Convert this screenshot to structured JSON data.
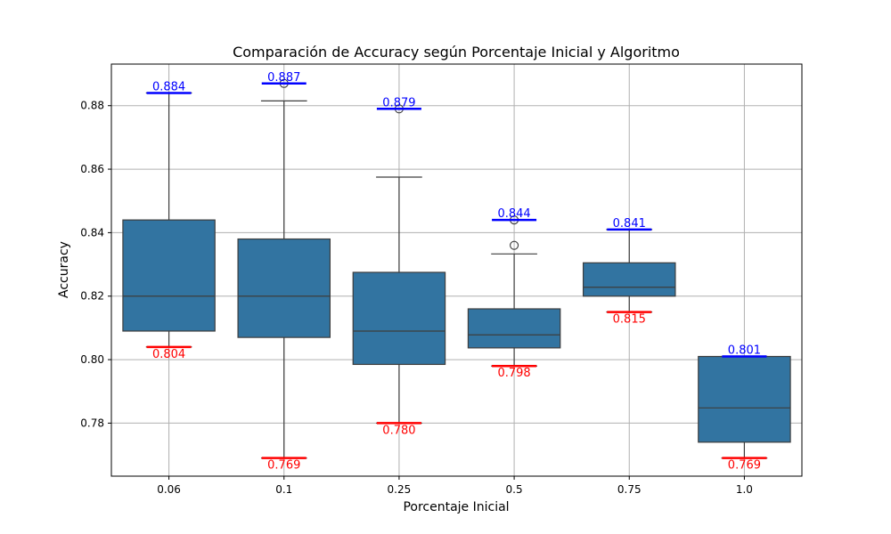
{
  "chart_data": {
    "type": "box",
    "title": "Comparación de Accuracy según Porcentaje Inicial y Algoritmo",
    "xlabel": "Porcentaje Inicial",
    "ylabel": "Accuracy",
    "ylim": [
      0.7633,
      0.8931
    ],
    "yticks": [
      0.78,
      0.8,
      0.82,
      0.84,
      0.86,
      0.88
    ],
    "ytick_labels": [
      "0.78",
      "0.80",
      "0.82",
      "0.84",
      "0.86",
      "0.88"
    ],
    "grid": true,
    "categories": [
      "0.06",
      "0.1",
      "0.25",
      "0.5",
      "0.75",
      "1.0"
    ],
    "boxes": [
      {
        "q1": 0.809,
        "median": 0.82,
        "q3": 0.844,
        "whisker_low": 0.804,
        "whisker_high": 0.884,
        "outliers": [],
        "max": 0.884,
        "min": 0.804,
        "max_label": "0.884",
        "min_label": "0.804"
      },
      {
        "q1": 0.807,
        "median": 0.82,
        "q3": 0.838,
        "whisker_low": 0.769,
        "whisker_high": 0.8815,
        "outliers": [
          0.887
        ],
        "max": 0.887,
        "min": 0.769,
        "max_label": "0.887",
        "min_label": "0.769"
      },
      {
        "q1": 0.7985,
        "median": 0.809,
        "q3": 0.8275,
        "whisker_low": 0.78,
        "whisker_high": 0.8575,
        "outliers": [
          0.879
        ],
        "max": 0.879,
        "min": 0.78,
        "max_label": "0.879",
        "min_label": "0.780"
      },
      {
        "q1": 0.8037,
        "median": 0.8078,
        "q3": 0.816,
        "whisker_low": 0.798,
        "whisker_high": 0.8333,
        "outliers": [
          0.836,
          0.844
        ],
        "max": 0.844,
        "min": 0.798,
        "max_label": "0.844",
        "min_label": "0.798"
      },
      {
        "q1": 0.82,
        "median": 0.8228,
        "q3": 0.8305,
        "whisker_low": 0.815,
        "whisker_high": 0.841,
        "outliers": [],
        "max": 0.841,
        "min": 0.815,
        "max_label": "0.841",
        "min_label": "0.815"
      },
      {
        "q1": 0.774,
        "median": 0.7848,
        "q3": 0.801,
        "whisker_low": 0.769,
        "whisker_high": 0.801,
        "outliers": [],
        "max": 0.801,
        "min": 0.769,
        "max_label": "0.801",
        "min_label": "0.769"
      }
    ],
    "colors": {
      "box_fill": "#3274a1",
      "box_edge": "#3d3d3d",
      "max_marker": "#0000ff",
      "min_marker": "#ff0000",
      "grid": "#b0b0b0"
    }
  }
}
